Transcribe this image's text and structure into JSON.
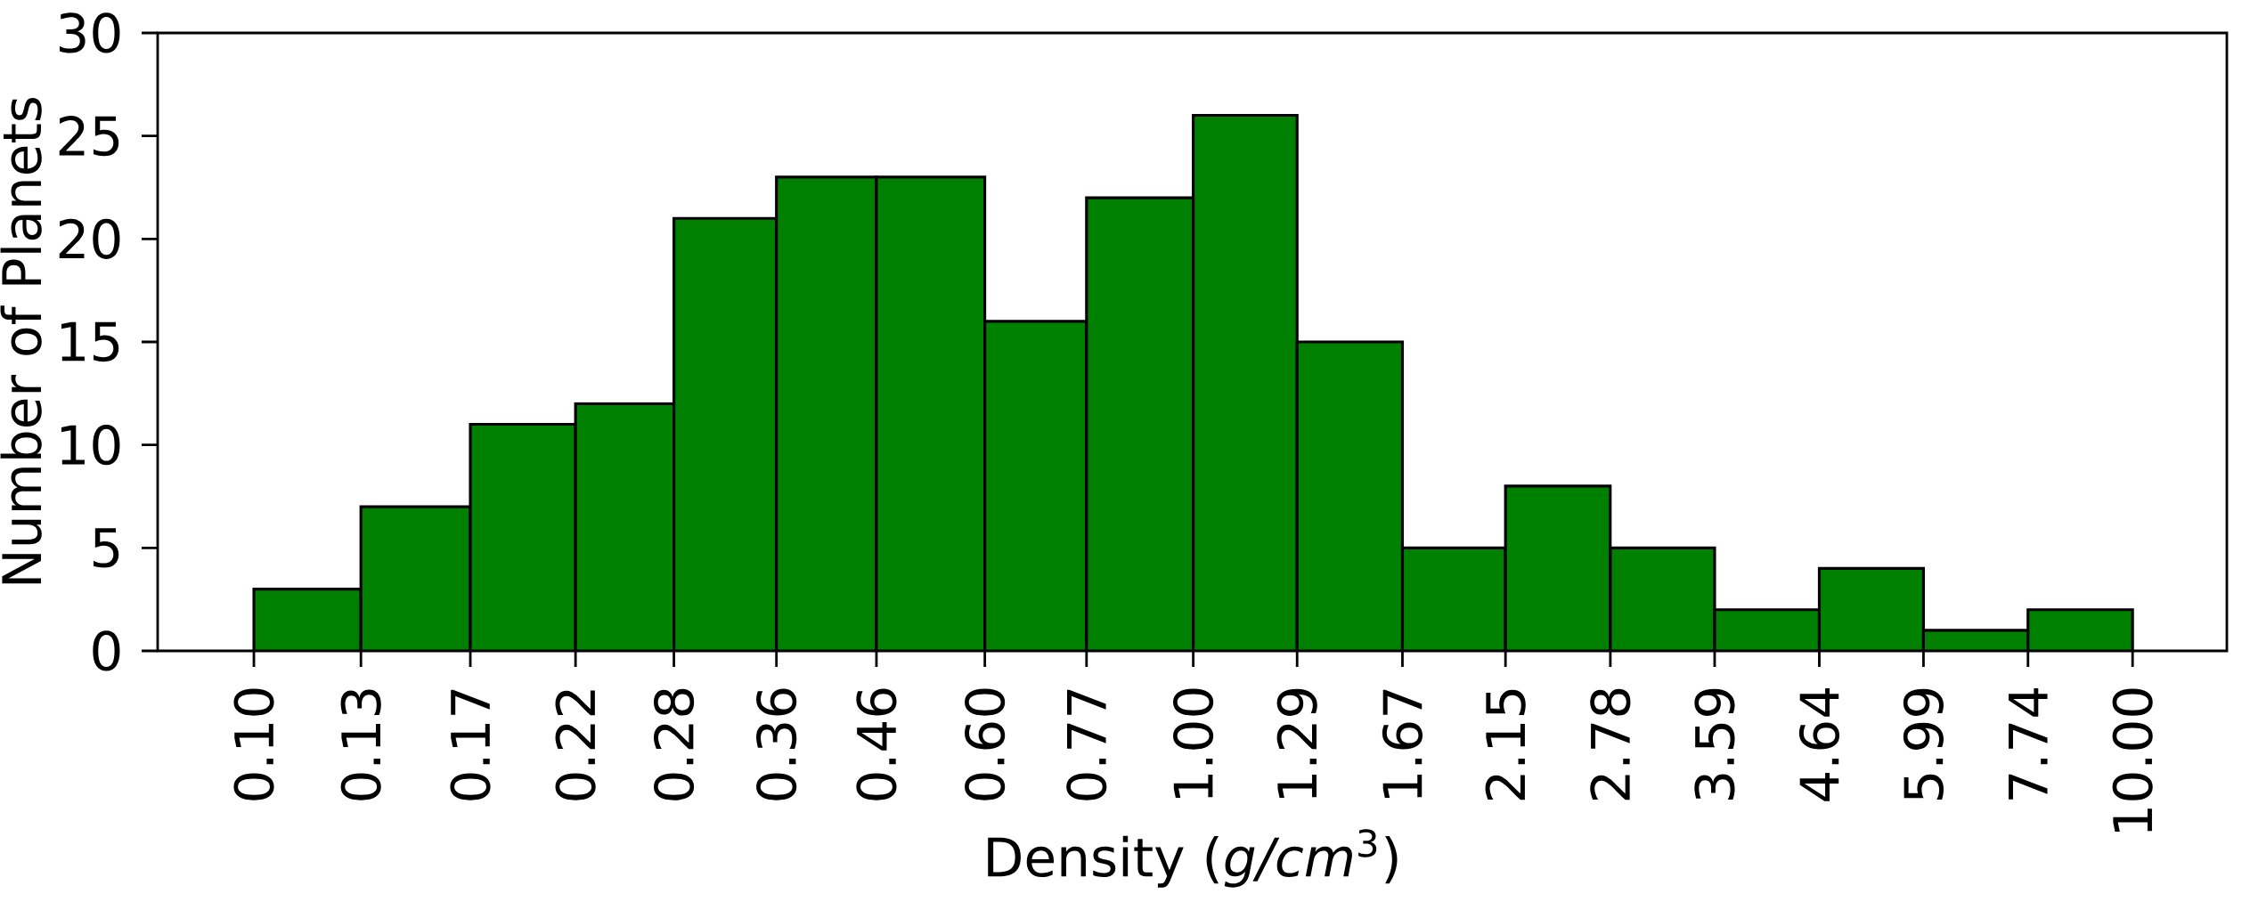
{
  "chart_data": {
    "type": "histogram",
    "xlabel": "Density (*g/cm*$^{3}$)",
    "ylabel": "Number of Planets",
    "bins": [
      0.1,
      0.13,
      0.17,
      0.22,
      0.28,
      0.36,
      0.46,
      0.6,
      0.77,
      1.0,
      1.29,
      1.67,
      2.15,
      2.78,
      3.59,
      4.64,
      5.99,
      7.74,
      10.0
    ],
    "values": [
      3,
      7,
      11,
      12,
      21,
      23,
      23,
      16,
      22,
      26,
      15,
      5,
      8,
      5,
      2,
      4,
      1,
      2
    ],
    "color": "#008000",
    "log": "x",
    "grid": false,
    "xlim": [
      0.079,
      12.6
    ],
    "ylim": [
      0,
      30
    ],
    "xticks": [
      {
        "value": 0.1,
        "label": "0.10"
      },
      {
        "value": 0.13,
        "label": "0.13"
      },
      {
        "value": 0.17,
        "label": "0.17"
      },
      {
        "value": 0.22,
        "label": "0.22"
      },
      {
        "value": 0.28,
        "label": "0.28"
      },
      {
        "value": 0.36,
        "label": "0.36"
      },
      {
        "value": 0.46,
        "label": "0.46"
      },
      {
        "value": 0.6,
        "label": "0.60"
      },
      {
        "value": 0.77,
        "label": "0.77"
      },
      {
        "value": 1.0,
        "label": "1.00"
      },
      {
        "value": 1.29,
        "label": "1.29"
      },
      {
        "value": 1.67,
        "label": "1.67"
      },
      {
        "value": 2.15,
        "label": "2.15"
      },
      {
        "value": 2.78,
        "label": "2.78"
      },
      {
        "value": 3.59,
        "label": "3.59"
      },
      {
        "value": 4.64,
        "label": "4.64"
      },
      {
        "value": 5.99,
        "label": "5.99"
      },
      {
        "value": 7.74,
        "label": "7.74"
      },
      {
        "value": 10.0,
        "label": "10.00"
      }
    ],
    "yticks": [
      0,
      5,
      10,
      15,
      20,
      25,
      30
    ]
  }
}
